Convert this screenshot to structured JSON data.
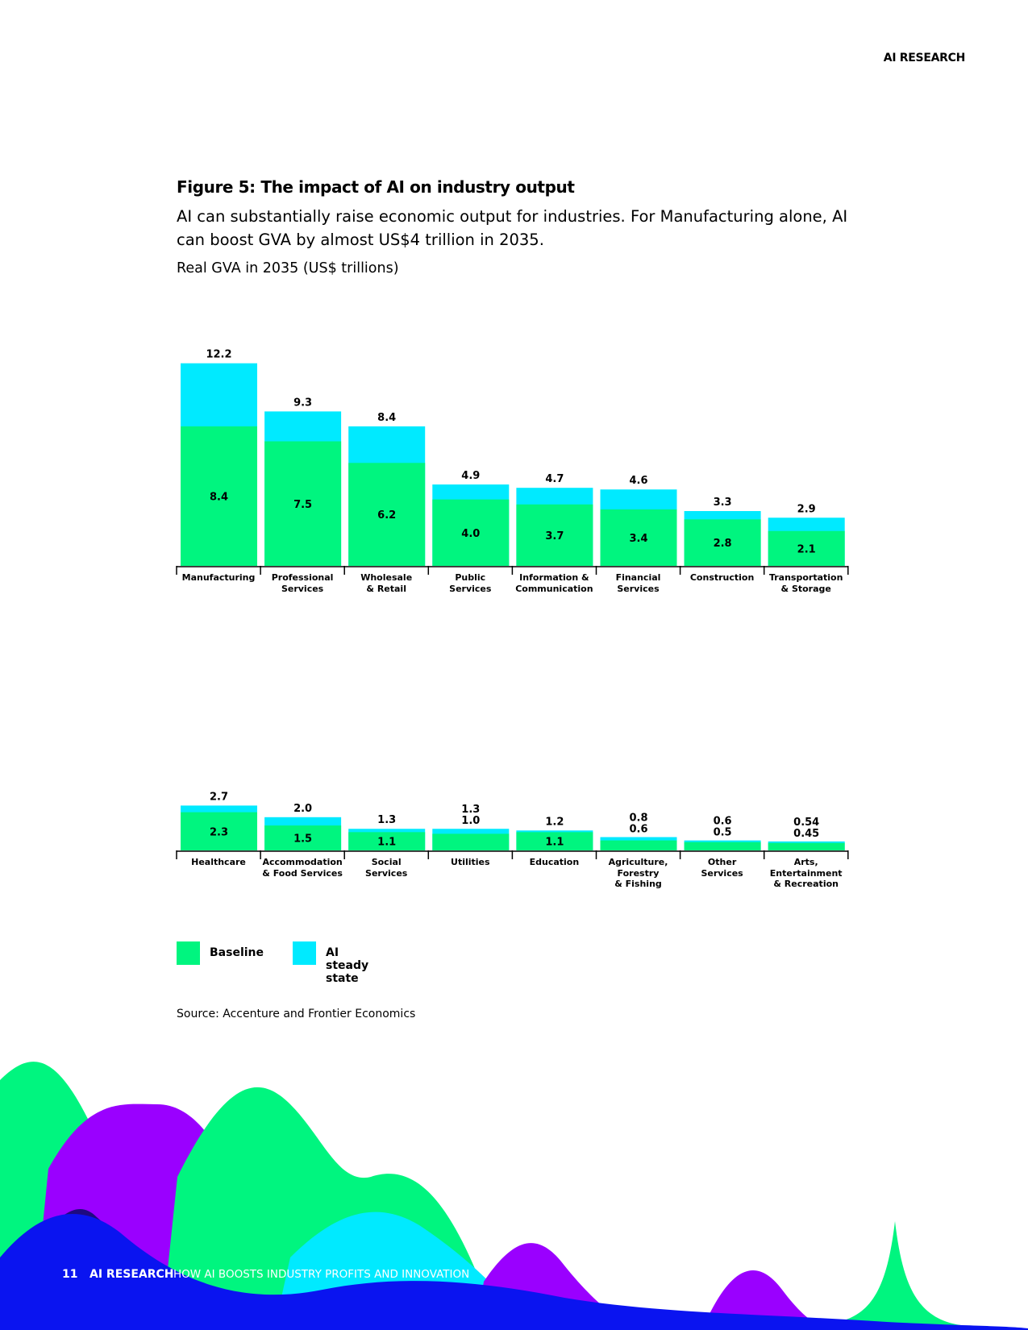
{
  "header": {
    "section": "AI RESEARCH"
  },
  "title": "Figure 5: The impact of AI on industry output",
  "subtitle": "AI can substantially raise economic output for industries. For Manufacturing alone, AI can boost GVA by almost US$4 trillion in 2035.",
  "unit_label": "Real GVA in 2035 (US$ trillions)",
  "chart_data": [
    {
      "type": "bar",
      "categories": [
        "Manufacturing",
        "Professional\nServices",
        "Wholesale\n& Retail",
        "Public\nServices",
        "Information &\nCommunication",
        "Financial\nServices",
        "Construction",
        "Transportation\n& Storage"
      ],
      "series": [
        {
          "name": "Baseline",
          "color": "#00f57f",
          "values": [
            8.4,
            7.5,
            6.2,
            4.0,
            3.7,
            3.4,
            2.8,
            2.1
          ],
          "value_labels": [
            "8.4",
            "7.5",
            "6.2",
            "4.0",
            "3.7",
            "3.4",
            "2.8",
            "2.1"
          ]
        },
        {
          "name": "AI steady state",
          "color": "#00eaff",
          "values": [
            12.2,
            9.3,
            8.4,
            4.9,
            4.7,
            4.6,
            3.3,
            2.9
          ],
          "value_labels": [
            "12.2",
            "9.3",
            "8.4",
            "4.9",
            "4.7",
            "4.6",
            "3.3",
            "2.9"
          ]
        }
      ]
    },
    {
      "type": "bar",
      "categories": [
        "Healthcare",
        "Accommodation\n& Food Services",
        "Social\nServices",
        "Utilities",
        "Education",
        "Agriculture,\nForestry\n& Fishing",
        "Other\nServices",
        "Arts,\nEntertainment\n& Recreation"
      ],
      "series": [
        {
          "color": "#00f57f",
          "values": [
            2.3,
            1.5,
            1.1,
            1.0,
            1.1,
            0.6,
            0.5,
            0.45
          ],
          "value_labels": [
            "2.3",
            "1.5",
            "1.1",
            "1.0",
            "1.1",
            "0.6",
            "0.5",
            "0.45"
          ]
        },
        {
          "color": "#00eaff",
          "values": [
            2.7,
            2.0,
            1.3,
            1.3,
            1.2,
            0.8,
            0.6,
            0.54
          ],
          "value_labels": [
            "2.7",
            "2.0",
            "1.3",
            "1.3",
            "1.2",
            "0.8",
            "0.6",
            "0.54"
          ]
        }
      ]
    }
  ],
  "source": "Source: Accenture and Frontier Economics",
  "footer": {
    "page": "11",
    "section": "AI RESEARCH",
    "title": "HOW AI BOOSTS INDUSTRY PROFITS AND INNOVATION"
  }
}
